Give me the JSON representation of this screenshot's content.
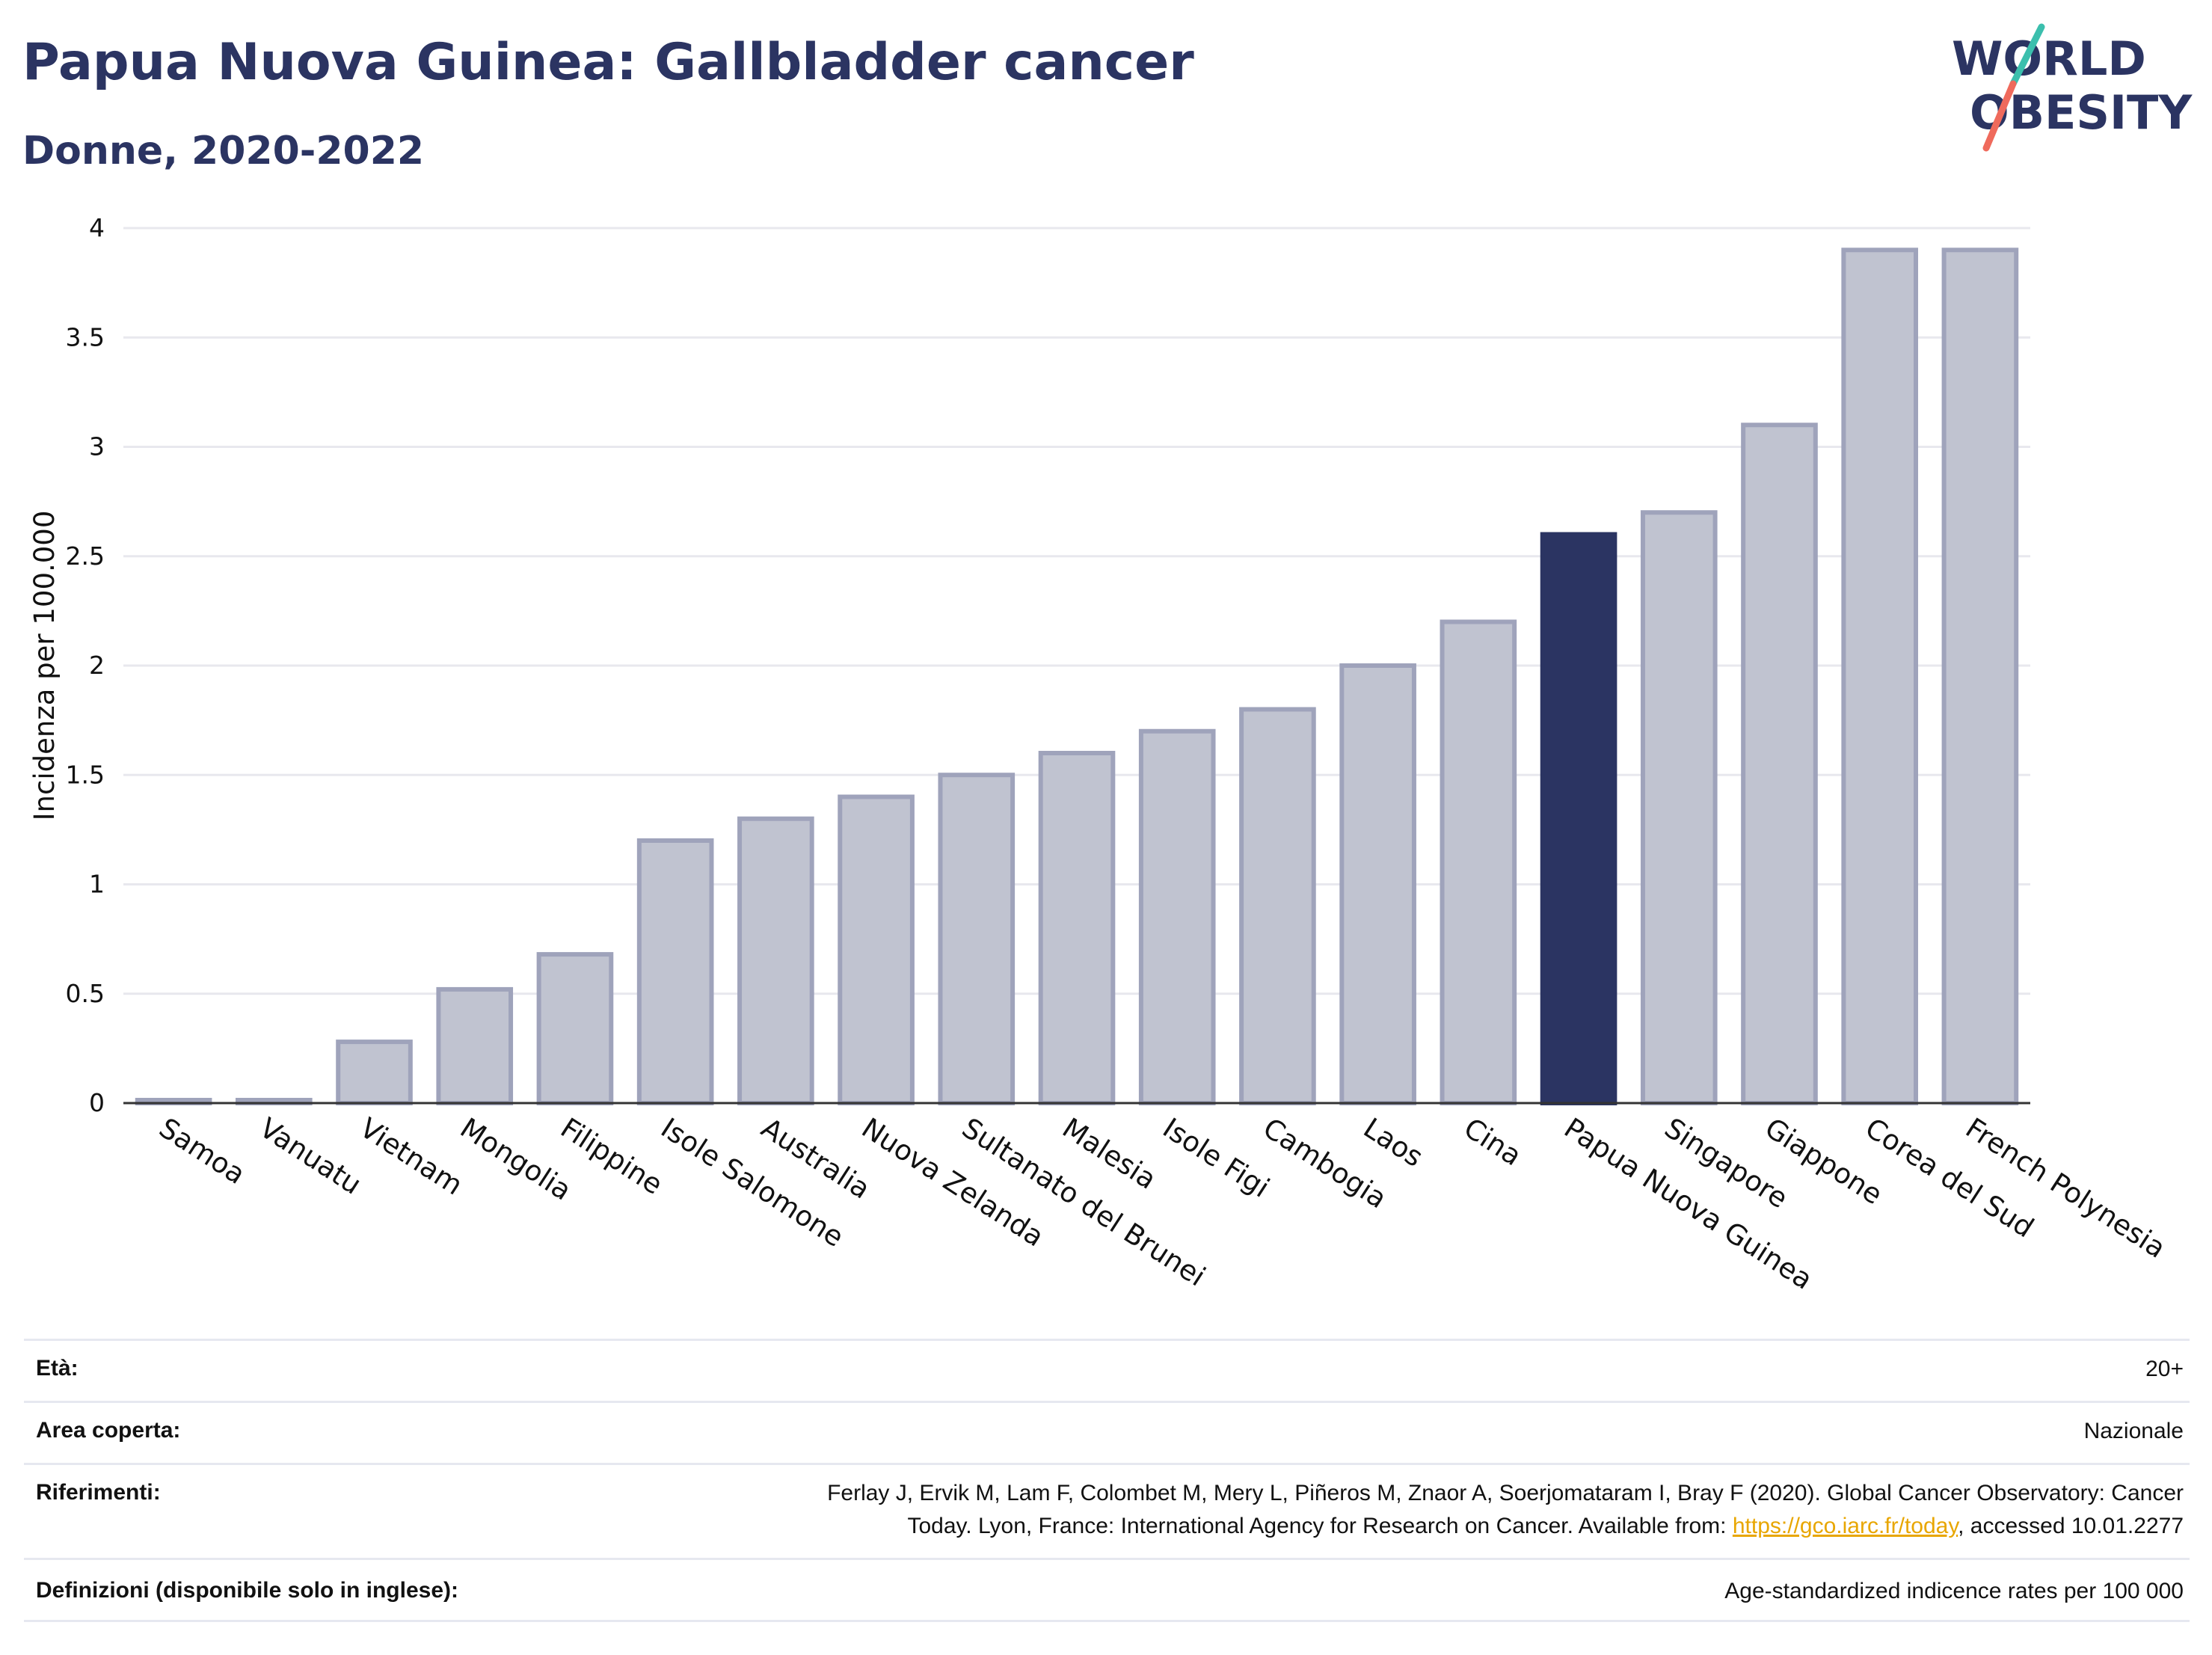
{
  "header": {
    "title": "Papua Nuova Guinea: Gallbladder cancer",
    "subtitle": "Donne, 2020-2022"
  },
  "logo": {
    "line1": "WORLD",
    "line2": "OBESITY"
  },
  "chart_data": {
    "type": "bar",
    "title": "Papua Nuova Guinea: Gallbladder cancer",
    "subtitle": "Donne, 2020-2022",
    "xlabel": "",
    "ylabel": "Incidenza per 100.000",
    "ylim": [
      0,
      4
    ],
    "yticks": [
      "0",
      "0.5",
      "1",
      "1.5",
      "2",
      "2.5",
      "3",
      "3.5",
      "4"
    ],
    "grid": true,
    "categories": [
      "Samoa",
      "Vanuatu",
      "Vietnam",
      "Mongolia",
      "Filippine",
      "Isole Salomone",
      "Australia",
      "Nuova Zelanda",
      "Sultanato del Brunei",
      "Malesia",
      "Isole Figi",
      "Cambogia",
      "Laos",
      "Cina",
      "Papua Nuova Guinea",
      "Singapore",
      "Giappone",
      "Corea del Sud",
      "French Polynesia"
    ],
    "values": [
      0.01,
      0.01,
      0.28,
      0.52,
      0.68,
      1.2,
      1.3,
      1.4,
      1.5,
      1.6,
      1.7,
      1.8,
      2.0,
      2.2,
      2.6,
      2.7,
      3.1,
      3.9,
      3.9
    ],
    "highlight": "Papua Nuova Guinea",
    "colors": {
      "bar": "#c0c3d0",
      "bar_border": "#9fa3bb",
      "highlight": "#2b3462",
      "axis": "#333333",
      "grid": "#e8e8ee"
    }
  },
  "info": {
    "age_label": "Età:",
    "age_value": "20+",
    "area_label": "Area coperta:",
    "area_value": "Nazionale",
    "refs_label": "Riferimenti:",
    "refs_line1": "Ferlay J, Ervik M, Lam F, Colombet M, Mery L, Piñeros M, Znaor A, Soerjomataram I, Bray F (2020). Global Cancer Observatory: Cancer",
    "refs_line2_pre": "Today. Lyon, France: International Agency for Research on Cancer. Available from: ",
    "refs_link": "https://gco.iarc.fr/today",
    "refs_line2_post": ", accessed 10.01.2277",
    "defs_label": "Definizioni (disponibile solo in inglese):",
    "defs_value": "Age-standardized indicence rates per 100 000"
  }
}
